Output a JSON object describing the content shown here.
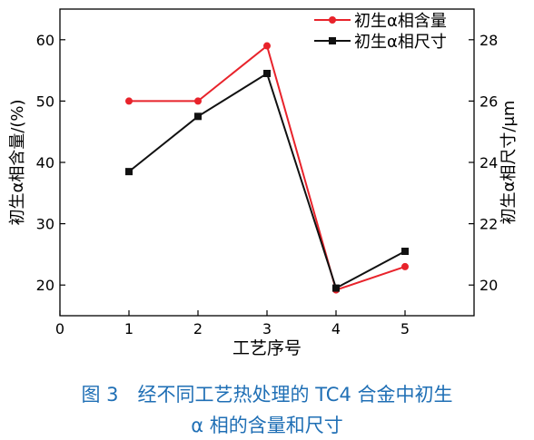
{
  "chart_data": {
    "type": "line",
    "xlabel": "工艺序号",
    "ylabel_left": "初生α相含量/(%)",
    "ylabel_right": "初生α相尺寸/μm",
    "x": [
      1,
      2,
      3,
      4,
      5
    ],
    "xlim": [
      0,
      6
    ],
    "x_ticks": [
      "0",
      "1",
      "2",
      "3",
      "4",
      "5"
    ],
    "ylim_left": [
      15,
      65
    ],
    "ylim_right": [
      19,
      29
    ],
    "y_ticks_left": [
      "20",
      "30",
      "40",
      "50",
      "60"
    ],
    "y_ticks_right": [
      "20",
      "22",
      "24",
      "26",
      "28"
    ],
    "series": [
      {
        "name": "初生α相含量",
        "axis": "left",
        "color": "#e8232b",
        "marker": "circle",
        "values": [
          50,
          50,
          59,
          19.2,
          23
        ]
      },
      {
        "name": "初生α相尺寸",
        "axis": "right",
        "color": "#111111",
        "marker": "square",
        "values": [
          23.7,
          25.5,
          26.9,
          19.9,
          21.1
        ]
      }
    ],
    "legend_position": "top-right",
    "grid": false
  },
  "caption": {
    "line1": "图 3　经不同工艺热处理的 TC4 合金中初生",
    "line2": "α 相的含量和尺寸"
  }
}
